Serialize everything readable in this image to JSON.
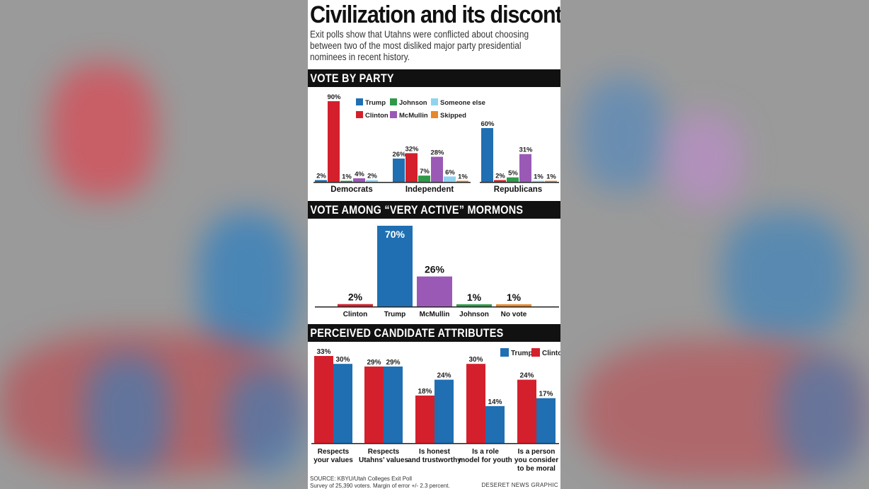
{
  "title": "Civilization and its discontents",
  "subtitle": "Exit polls show that Utahns were conflicted about choosing between two of the most disliked major party presidential nominees in recent history.",
  "colors": {
    "Trump": "#1f6fb2",
    "Clinton": "#d4202c",
    "Johnson": "#2e9a48",
    "McMullin": "#9b59b6",
    "Someone else": "#8fd3f0",
    "Skipped": "#e8872a"
  },
  "sections": {
    "party": "VOTE  BY PARTY",
    "mormon": "VOTE  AMONG “VERY ACTIVE” MORMONS",
    "attributes": "PERCEIVED CANDIDATE ATTRIBUTES"
  },
  "chart_data": [
    {
      "type": "bar",
      "categories": [
        "Democrats",
        "Independent",
        "Republicans"
      ],
      "series": [
        {
          "name": "Trump",
          "values": [
            2,
            26,
            60
          ]
        },
        {
          "name": "Clinton",
          "values": [
            90,
            32,
            2
          ]
        },
        {
          "name": "Johnson",
          "values": [
            1,
            7,
            5
          ]
        },
        {
          "name": "McMullin",
          "values": [
            4,
            28,
            31
          ]
        },
        {
          "name": "Someone else",
          "values": [
            2,
            6,
            1
          ]
        },
        {
          "name": "Skipped",
          "values": [
            0,
            1,
            1
          ]
        }
      ],
      "legend": [
        "Trump",
        "Johnson",
        "Someone else",
        "Clinton",
        "McMullin",
        "Skipped"
      ],
      "legend_position": "top-right",
      "labels": [
        [
          "2%",
          "90%",
          "1%",
          "4%",
          "2%",
          ""
        ],
        [
          "26%",
          "32%",
          "7%",
          "28%",
          "6%",
          "1%"
        ],
        [
          "60%",
          "2%",
          "5%",
          "31%",
          "1%",
          "1%"
        ]
      ],
      "ylim": [
        0,
        100
      ]
    },
    {
      "type": "bar",
      "categories": [
        "Clinton",
        "Trump",
        "McMullin",
        "Johnson",
        "No vote"
      ],
      "values": [
        2,
        70,
        26,
        1,
        1
      ],
      "labels": [
        "2%",
        "70%",
        "26%",
        "1%",
        "1%"
      ],
      "colors": [
        "#d4202c",
        "#1f6fb2",
        "#9b59b6",
        "#2e9a48",
        "#e8872a"
      ],
      "ylim": [
        0,
        70
      ]
    },
    {
      "type": "bar",
      "categories": [
        "Respects your values",
        "Respects Utahns’ values",
        "Is honest and trustworthy",
        "Is a role model for youth",
        "Is a person you consider to be moral"
      ],
      "category_lines": [
        [
          "Respects",
          "your values"
        ],
        [
          "Respects",
          "Utahns’ values"
        ],
        [
          "Is honest",
          "and trustworthy"
        ],
        [
          "Is a role",
          "model for youth"
        ],
        [
          "Is a person",
          "you consider",
          "to be moral"
        ]
      ],
      "series": [
        {
          "name": "Clinton",
          "values": [
            33,
            29,
            18,
            30,
            24
          ]
        },
        {
          "name": "Trump",
          "values": [
            30,
            29,
            24,
            14,
            17
          ]
        }
      ],
      "legend": [
        "Trump",
        "Clinton"
      ],
      "legend_position": "top-right",
      "ylim": [
        0,
        33
      ]
    }
  ],
  "footer": {
    "source": "SOURCE: KBYU/Utah Colleges Exit Poll",
    "survey": "Survey of 25,390 voters. Margin of error +/- 2.3 percent.",
    "credit": "DESERET NEWS GRAPHIC"
  }
}
